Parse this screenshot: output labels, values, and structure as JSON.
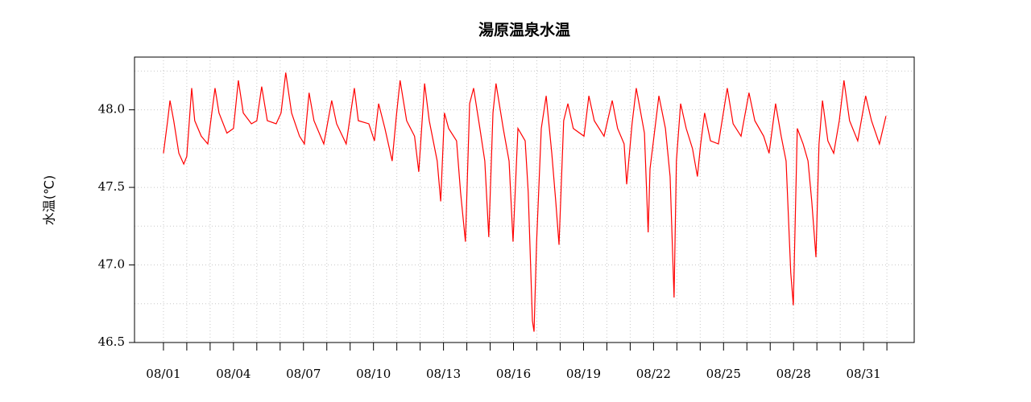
{
  "chart_data": {
    "type": "line",
    "title": "湯原温泉水温",
    "y_label": "水温(℃)",
    "x": [
      1.0,
      1.18,
      1.28,
      1.44,
      1.66,
      1.87,
      2.0,
      2.21,
      2.34,
      2.62,
      2.9,
      3.03,
      3.21,
      3.38,
      3.72,
      4.0,
      4.21,
      4.42,
      4.77,
      5.0,
      5.21,
      5.45,
      5.83,
      6.04,
      6.24,
      6.49,
      6.83,
      7.04,
      7.24,
      7.45,
      7.87,
      8.21,
      8.42,
      8.83,
      9.18,
      9.35,
      9.8,
      10.04,
      10.22,
      10.49,
      10.8,
      10.98,
      11.14,
      11.42,
      11.76,
      11.94,
      12.19,
      12.39,
      12.73,
      12.88,
      13.04,
      13.22,
      13.56,
      13.73,
      13.94,
      14.12,
      14.29,
      14.56,
      14.77,
      14.94,
      15.12,
      15.25,
      15.56,
      15.81,
      15.98,
      16.19,
      16.5,
      16.63,
      16.81,
      16.88,
      16.99,
      17.19,
      17.4,
      17.64,
      17.81,
      17.95,
      18.15,
      18.33,
      18.56,
      19.02,
      19.23,
      19.46,
      19.88,
      20.23,
      20.46,
      20.74,
      20.85,
      21.08,
      21.26,
      21.61,
      21.77,
      21.85,
      22.02,
      22.23,
      22.51,
      22.71,
      22.88,
      22.98,
      23.16,
      23.4,
      23.67,
      23.88,
      24.02,
      24.19,
      24.44,
      24.78,
      25.16,
      25.41,
      25.75,
      26.09,
      26.34,
      26.72,
      26.95,
      27.23,
      27.47,
      27.68,
      27.88,
      27.99,
      28.16,
      28.41,
      28.62,
      28.78,
      28.96,
      29.09,
      29.24,
      29.47,
      29.72,
      29.96,
      30.16,
      30.4,
      30.75,
      31.09,
      31.34,
      31.68,
      31.96
    ],
    "series": [
      {
        "color": "#ff0000",
        "values": [
          47.72,
          47.93,
          48.06,
          47.93,
          47.72,
          47.65,
          47.7,
          48.14,
          47.93,
          47.83,
          47.78,
          47.93,
          48.14,
          47.98,
          47.85,
          47.88,
          48.19,
          47.98,
          47.91,
          47.93,
          48.15,
          47.93,
          47.91,
          47.98,
          48.24,
          47.98,
          47.83,
          47.78,
          48.11,
          47.93,
          47.78,
          48.06,
          47.91,
          47.78,
          48.14,
          47.93,
          47.91,
          47.8,
          48.04,
          47.88,
          47.67,
          47.96,
          48.19,
          47.93,
          47.83,
          47.6,
          48.17,
          47.93,
          47.67,
          47.41,
          47.98,
          47.88,
          47.8,
          47.47,
          47.15,
          48.04,
          48.14,
          47.88,
          47.67,
          47.18,
          47.98,
          48.17,
          47.88,
          47.67,
          47.15,
          47.88,
          47.8,
          47.47,
          46.64,
          46.57,
          47.15,
          47.88,
          48.09,
          47.72,
          47.41,
          47.13,
          47.93,
          48.04,
          47.88,
          47.83,
          48.09,
          47.93,
          47.83,
          48.06,
          47.88,
          47.78,
          47.52,
          47.91,
          48.14,
          47.85,
          47.21,
          47.62,
          47.83,
          48.09,
          47.88,
          47.57,
          46.79,
          47.67,
          48.04,
          47.88,
          47.75,
          47.57,
          47.78,
          47.98,
          47.8,
          47.78,
          48.14,
          47.91,
          47.83,
          48.11,
          47.93,
          47.83,
          47.72,
          48.04,
          47.83,
          47.67,
          46.95,
          46.74,
          47.88,
          47.78,
          47.67,
          47.41,
          47.05,
          47.78,
          48.06,
          47.8,
          47.72,
          47.93,
          48.19,
          47.93,
          47.8,
          48.09,
          47.93,
          47.78,
          47.96
        ]
      }
    ],
    "xlim": [
      -0.24,
      33.17
    ],
    "xticks": [
      {
        "value": 1,
        "label": "08/01"
      },
      {
        "value": 4,
        "label": "08/04"
      },
      {
        "value": 7,
        "label": "08/07"
      },
      {
        "value": 10,
        "label": "08/10"
      },
      {
        "value": 13,
        "label": "08/13"
      },
      {
        "value": 16,
        "label": "08/16"
      },
      {
        "value": 19,
        "label": "08/19"
      },
      {
        "value": 22,
        "label": "08/22"
      },
      {
        "value": 25,
        "label": "08/25"
      },
      {
        "value": 28,
        "label": "08/28"
      },
      {
        "value": 31,
        "label": "08/31"
      }
    ],
    "xminor_ticks": [
      1,
      2,
      3,
      4,
      5,
      6,
      7,
      8,
      9,
      10,
      11,
      12,
      13,
      14,
      15,
      16,
      17,
      18,
      19,
      20,
      21,
      22,
      23,
      24,
      25,
      26,
      27,
      28,
      29,
      30,
      31,
      32
    ],
    "ylim": [
      46.5,
      48.34
    ],
    "yticks": [
      46.5,
      {
        "value": 47,
        "label": "47.0"
      },
      47.5,
      {
        "value": 48,
        "label": "48.0"
      }
    ],
    "ygrid": [
      46.5,
      46.75,
      47,
      47.25,
      47.5,
      47.75,
      48,
      48.25
    ],
    "grid": true
  }
}
